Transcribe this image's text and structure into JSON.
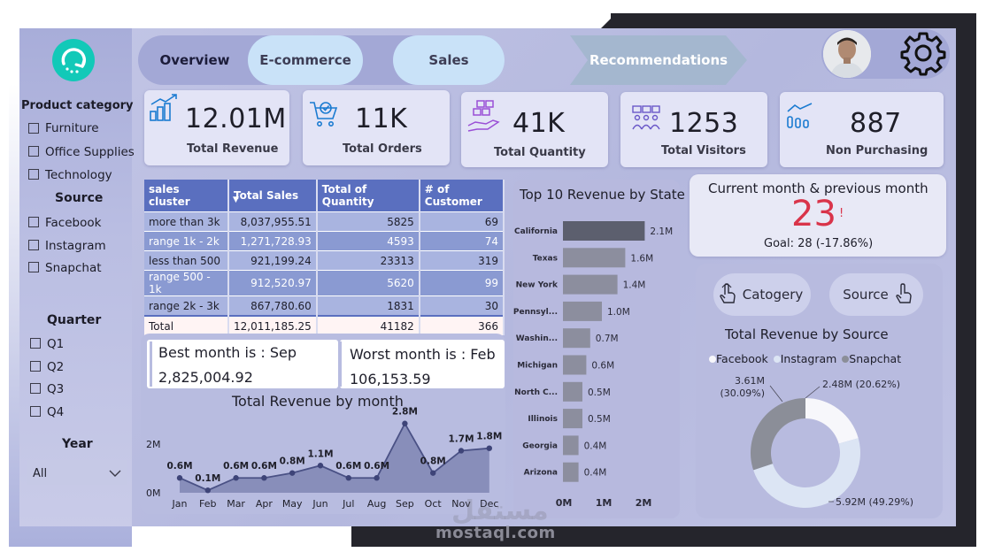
{
  "nav": {
    "overview": "Overview",
    "ecommerce": "E-commerce",
    "sales": "Sales",
    "recommendations": "Recommendations"
  },
  "filters": {
    "product_category_title": "Product category",
    "product_categories": [
      "Furniture",
      "Office Supplies",
      "Technology"
    ],
    "source_title": "Source",
    "sources": [
      "Facebook",
      "Instagram",
      "Snapchat"
    ],
    "quarter_title": "Quarter",
    "quarters": [
      "Q1",
      "Q2",
      "Q3",
      "Q4"
    ],
    "year_title": "Year",
    "year_value": "All"
  },
  "kpis": [
    {
      "value": "12.01M",
      "label": "Total Revenue"
    },
    {
      "value": "11K",
      "label": "Total Orders"
    },
    {
      "value": "41K",
      "label": "Total Quantity"
    },
    {
      "value": "1253",
      "label": "Total Visitors"
    },
    {
      "value": "887",
      "label": "Non Purchasing"
    }
  ],
  "cluster_table": {
    "headers": [
      "sales cluster",
      "Total Sales",
      "Total of Quantity",
      "# of Customer"
    ],
    "rows": [
      [
        "more than 3k",
        "8,037,955.51",
        "5825",
        "69"
      ],
      [
        "range 1k - 2k",
        "1,271,728.93",
        "4593",
        "74"
      ],
      [
        "less than 500",
        "921,199.24",
        "23313",
        "319"
      ],
      [
        "range 500 - 1k",
        "912,520.97",
        "5620",
        "99"
      ],
      [
        "range 2k - 3k",
        "867,780.60",
        "1831",
        "30"
      ]
    ],
    "total": [
      "Total",
      "12,011,185.25",
      "41182",
      "366"
    ]
  },
  "best_month": {
    "label": "Best month is : Sep",
    "value": "2,825,004.92"
  },
  "worst_month": {
    "label": "Worst month is : Feb",
    "value": "106,153.59"
  },
  "monthly_chart": {
    "title": "Total Revenue by month",
    "y_ticks": [
      "2M",
      "0M"
    ]
  },
  "state_chart": {
    "title": "Top 10 Revenue by State",
    "x_ticks": [
      "0M",
      "1M",
      "2M"
    ]
  },
  "current_vs_previous": {
    "title": "Current month & previous month",
    "value": "23",
    "mark": "!",
    "goal": "Goal: 28 (-17.86%)"
  },
  "source_panel": {
    "category_button": "Catogery",
    "source_button": "Source",
    "chart_title": "Total Revenue by Source",
    "legend": [
      "Facebook",
      "Instagram",
      "Snapchat"
    ]
  },
  "watermark": {
    "text": "mostaql.com",
    "arabic": "مستقل"
  },
  "colors": {
    "accent": "#5a6fbf",
    "logo": "#12c9b8",
    "alert_red": "#d9344a",
    "panel": "#b8bce0"
  },
  "chart_data": [
    {
      "type": "area",
      "title": "Total Revenue by month",
      "categories": [
        "Jan",
        "Feb",
        "Mar",
        "Apr",
        "May",
        "Jun",
        "Jul",
        "Aug",
        "Sep",
        "Oct",
        "Nov",
        "Dec"
      ],
      "values": [
        0.6,
        0.1,
        0.6,
        0.6,
        0.8,
        1.1,
        0.6,
        0.6,
        2.8,
        0.8,
        1.7,
        1.8
      ],
      "data_labels": [
        "0.6M",
        "0.1M",
        "0.6M",
        "0.6M",
        "0.8M",
        "1.1M",
        "0.6M",
        "0.6M",
        "2.8M",
        "0.8M",
        "1.7M",
        "1.8M"
      ],
      "ylabel": "",
      "xlabel": "",
      "ylim": [
        0,
        3
      ]
    },
    {
      "type": "bar",
      "orientation": "horizontal",
      "title": "Top 10 Revenue by State",
      "categories": [
        "California",
        "Texas",
        "New York",
        "Pennsyl...",
        "Washin...",
        "Michigan",
        "North C...",
        "Illinois",
        "Georgia",
        "Arizona"
      ],
      "values": [
        2.1,
        1.6,
        1.4,
        1.0,
        0.7,
        0.6,
        0.5,
        0.5,
        0.4,
        0.4
      ],
      "data_labels": [
        "2.1M",
        "1.6M",
        "1.4M",
        "1.0M",
        "0.7M",
        "0.6M",
        "0.5M",
        "0.5M",
        "0.4M",
        "0.4M"
      ],
      "xlim": [
        0,
        2.4
      ]
    },
    {
      "type": "pie",
      "variant": "donut",
      "title": "Total Revenue by Source",
      "labels": [
        "Facebook",
        "Instagram",
        "Snapchat"
      ],
      "values": [
        2.48,
        5.92,
        3.61
      ],
      "percents": [
        20.62,
        49.29,
        30.09
      ],
      "data_labels": [
        "2.48M (20.62%)",
        "5.92M (49.29%)",
        "3.61M (30.09%)"
      ],
      "colors": [
        "#f7f7fb",
        "#dce5f4",
        "#8b8e98"
      ]
    }
  ]
}
